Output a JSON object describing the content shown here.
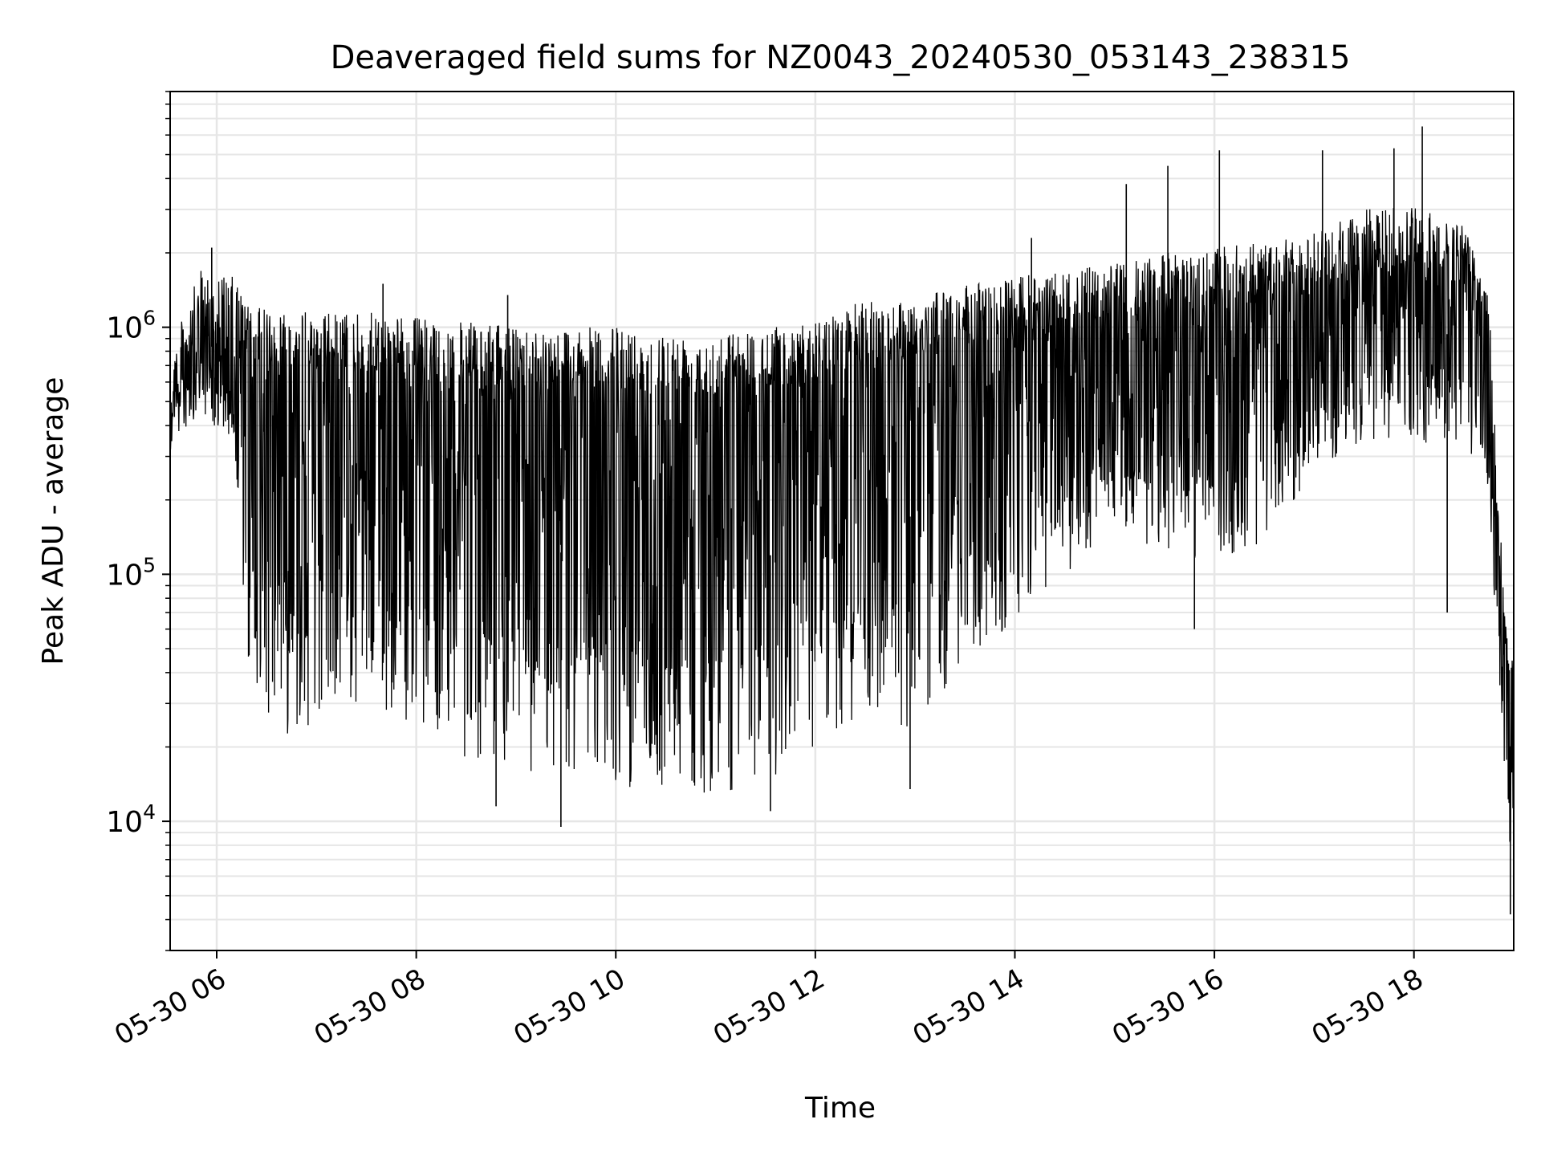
{
  "chart_data": {
    "type": "line",
    "title": "Deaveraged field sums for NZ0043_20240530_053143_238315",
    "xlabel": "Time",
    "ylabel": "Peak ADU - average",
    "y_scale": "log",
    "ylim": [
      3000,
      9000000
    ],
    "xlim": [
      "2024-05-30 05:32",
      "2024-05-30 19:00"
    ],
    "grid": true,
    "line_color": "#000000",
    "grid_color": "#e6e6e6",
    "x_ticks": [
      {
        "t": "2024-05-30 06:00",
        "label": "05-30 06"
      },
      {
        "t": "2024-05-30 08:00",
        "label": "05-30 08"
      },
      {
        "t": "2024-05-30 10:00",
        "label": "05-30 10"
      },
      {
        "t": "2024-05-30 12:00",
        "label": "05-30 12"
      },
      {
        "t": "2024-05-30 14:00",
        "label": "05-30 14"
      },
      {
        "t": "2024-05-30 16:00",
        "label": "05-30 16"
      },
      {
        "t": "2024-05-30 18:00",
        "label": "05-30 18"
      }
    ],
    "y_ticks": [
      {
        "value": 10000,
        "base": "10",
        "exp": "4"
      },
      {
        "value": 100000,
        "base": "10",
        "exp": "5"
      },
      {
        "value": 1000000,
        "base": "10",
        "exp": "6"
      }
    ],
    "series": [
      {
        "x": [
          "2024-05-30 05:32",
          "2024-05-30 05:50",
          "2024-05-30 06:10",
          "2024-05-30 06:20",
          "2024-05-30 06:40",
          "2024-05-30 07:00",
          "2024-05-30 07:30",
          "2024-05-30 08:00",
          "2024-05-30 08:30",
          "2024-05-30 09:00",
          "2024-05-30 09:30",
          "2024-05-30 10:00",
          "2024-05-30 10:30",
          "2024-05-30 11:00",
          "2024-05-30 11:30",
          "2024-05-30 12:00",
          "2024-05-30 12:30",
          "2024-05-30 13:00",
          "2024-05-30 13:30",
          "2024-05-30 14:00",
          "2024-05-30 14:30",
          "2024-05-30 15:00",
          "2024-05-30 15:30",
          "2024-05-30 16:00",
          "2024-05-30 16:30",
          "2024-05-30 17:00",
          "2024-05-30 17:30",
          "2024-05-30 18:00",
          "2024-05-30 18:30",
          "2024-05-30 18:45",
          "2024-05-30 18:55",
          "2024-05-30 19:00"
        ],
        "upper": [
          800000,
          1700000,
          1600000,
          1200000,
          1200000,
          1150000,
          1150000,
          1100000,
          1050000,
          1000000,
          1000000,
          1000000,
          950000,
          950000,
          1000000,
          1050000,
          1300000,
          1300000,
          1500000,
          1600000,
          1700000,
          1800000,
          2000000,
          2100000,
          2200000,
          2400000,
          3000000,
          3200000,
          2600000,
          1400000,
          70000,
          45000
        ],
        "lower": [
          450000,
          500000,
          300000,
          35000,
          22000,
          25000,
          28000,
          25000,
          18000,
          15000,
          15000,
          14000,
          13000,
          13000,
          14000,
          16000,
          28000,
          22000,
          45000,
          60000,
          100000,
          150000,
          120000,
          110000,
          130000,
          250000,
          350000,
          350000,
          300000,
          200000,
          14000,
          5000
        ],
        "spikes": [
          {
            "t": "2024-05-30 05:57",
            "v": 2100000
          },
          {
            "t": "2024-05-30 07:40",
            "v": 1500000
          },
          {
            "t": "2024-05-30 08:55",
            "v": 1350000
          },
          {
            "t": "2024-05-30 08:48",
            "v": 11500
          },
          {
            "t": "2024-05-30 09:27",
            "v": 9500
          },
          {
            "t": "2024-05-30 11:33",
            "v": 11000
          },
          {
            "t": "2024-05-30 12:57",
            "v": 13500
          },
          {
            "t": "2024-05-30 14:10",
            "v": 2300000
          },
          {
            "t": "2024-05-30 15:07",
            "v": 3800000
          },
          {
            "t": "2024-05-30 15:32",
            "v": 4500000
          },
          {
            "t": "2024-05-30 15:48",
            "v": 60000
          },
          {
            "t": "2024-05-30 16:03",
            "v": 5200000
          },
          {
            "t": "2024-05-30 17:05",
            "v": 5200000
          },
          {
            "t": "2024-05-30 17:48",
            "v": 5300000
          },
          {
            "t": "2024-05-30 18:05",
            "v": 6500000
          },
          {
            "t": "2024-05-30 18:20",
            "v": 70000
          },
          {
            "t": "2024-05-30 18:58",
            "v": 4200
          }
        ]
      }
    ]
  }
}
